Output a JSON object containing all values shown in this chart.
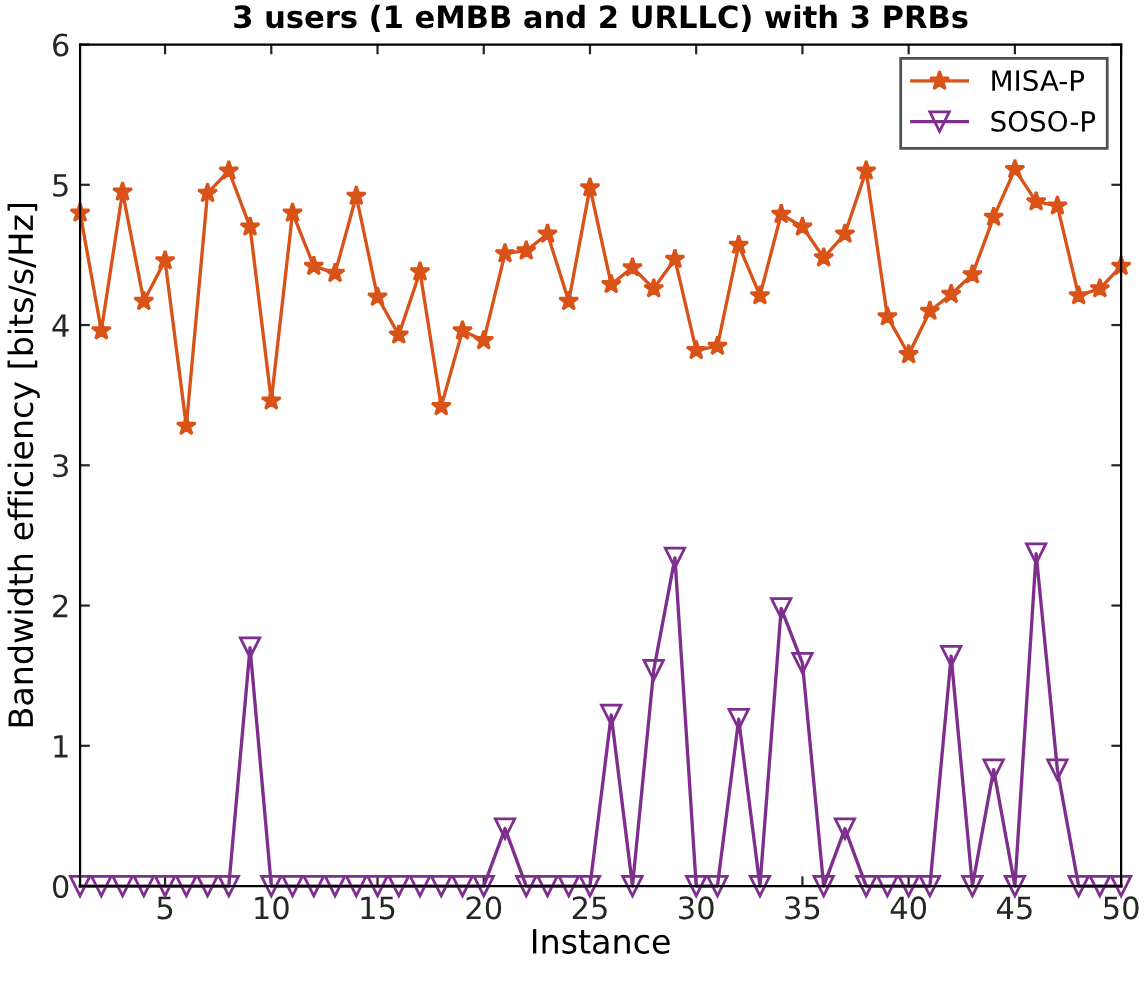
{
  "chart_data": {
    "type": "line",
    "title": "3 users (1 eMBB and 2 URLLC) with 3 PRBs",
    "xlabel": "Instance",
    "ylabel": "Bandwidth efficiency [bits/s/Hz]",
    "x": [
      1,
      2,
      3,
      4,
      5,
      6,
      7,
      8,
      9,
      10,
      11,
      12,
      13,
      14,
      15,
      16,
      17,
      18,
      19,
      20,
      21,
      22,
      23,
      24,
      25,
      26,
      27,
      28,
      29,
      30,
      31,
      32,
      33,
      34,
      35,
      36,
      37,
      38,
      39,
      40,
      41,
      42,
      43,
      44,
      45,
      46,
      47,
      48,
      49,
      50
    ],
    "series": [
      {
        "name": "MISA-P",
        "color": "#d95319",
        "marker": "star",
        "values": [
          4.8,
          3.96,
          4.95,
          4.17,
          4.46,
          3.28,
          4.94,
          5.1,
          4.7,
          3.46,
          4.8,
          4.42,
          4.37,
          4.92,
          4.2,
          3.93,
          4.38,
          3.42,
          3.96,
          3.89,
          4.51,
          4.53,
          4.65,
          4.17,
          4.98,
          4.29,
          4.41,
          4.26,
          4.47,
          3.82,
          3.85,
          4.57,
          4.21,
          4.79,
          4.7,
          4.48,
          4.65,
          5.1,
          4.06,
          3.79,
          4.1,
          4.22,
          4.36,
          4.77,
          5.11,
          4.88,
          4.85,
          4.21,
          4.26,
          4.42
        ]
      },
      {
        "name": "SOSO-P",
        "color": "#7e2f8e",
        "marker": "triangle",
        "values": [
          0,
          0,
          0,
          0,
          0,
          0,
          0,
          0,
          1.7,
          0,
          0,
          0,
          0,
          0,
          0,
          0,
          0,
          0,
          0,
          0,
          0.41,
          0,
          0,
          0,
          0,
          1.22,
          0,
          1.54,
          2.34,
          0,
          0,
          1.19,
          0,
          1.98,
          1.59,
          0,
          0.41,
          0,
          0,
          0,
          0,
          1.64,
          0,
          0.83,
          0,
          2.37,
          0.83,
          0,
          0,
          0
        ]
      }
    ],
    "xlim": [
      1,
      50
    ],
    "xticks": [
      5,
      10,
      15,
      20,
      25,
      30,
      35,
      40,
      45,
      50
    ],
    "ylim": [
      0,
      6
    ],
    "yticks": [
      0,
      1,
      2,
      3,
      4,
      5,
      6
    ],
    "grid": false,
    "legend": "top right",
    "line_style": "solid"
  }
}
